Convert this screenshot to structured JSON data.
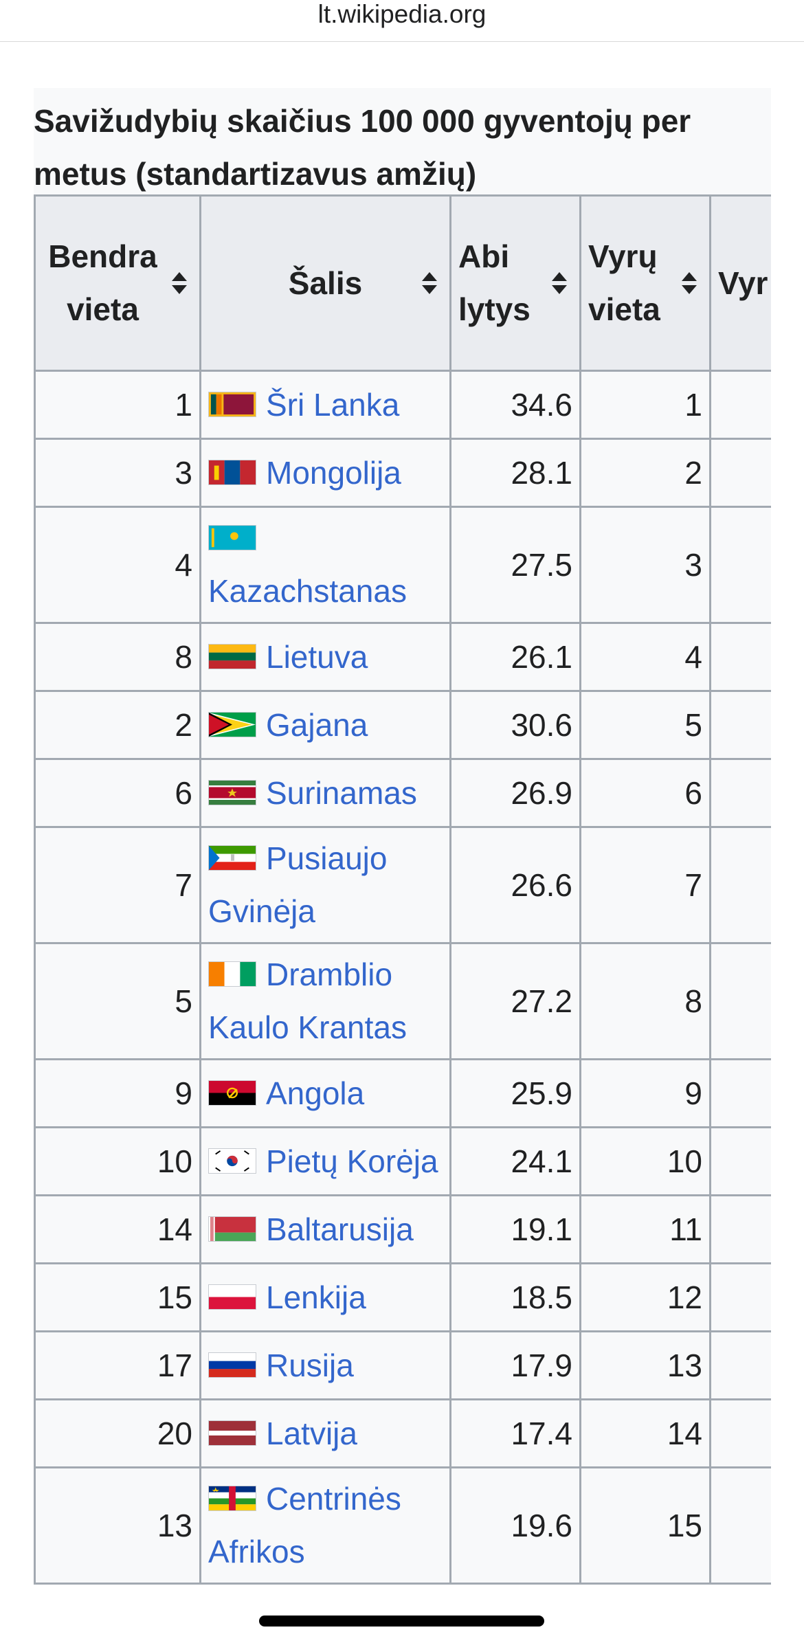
{
  "browser": {
    "url": "lt.wikipedia.org"
  },
  "caption": "Savižudybių skaičius 100 000 gyventojų per metus (standartizavus amžių)",
  "columns": [
    "Bendra vieta",
    "Šalis",
    "Abi lytys",
    "Vyrų vieta",
    "Vyr"
  ],
  "rows": [
    {
      "rank": "1",
      "country": "Šri Lanka",
      "both": "34.6",
      "male_rank": "1",
      "flag": "sri-lanka",
      "flag_colors": [
        "#f7b718",
        "#8d153a"
      ]
    },
    {
      "rank": "3",
      "country": "Mongolija",
      "both": "28.1",
      "male_rank": "2",
      "flag": "mongolia",
      "flag_colors": [
        "#c4272f",
        "#015197"
      ]
    },
    {
      "rank": "4",
      "country": "Kazachstanas",
      "both": "27.5",
      "male_rank": "3",
      "flag": "kazakhstan",
      "flag_colors": [
        "#00afca",
        "#fec50c"
      ]
    },
    {
      "rank": "8",
      "country": "Lietuva",
      "both": "26.1",
      "male_rank": "4",
      "flag": "lithuania",
      "flag_colors": [
        "#fdb913",
        "#006a44",
        "#c1272d"
      ]
    },
    {
      "rank": "2",
      "country": "Gajana",
      "both": "30.6",
      "male_rank": "5",
      "flag": "guyana",
      "flag_colors": [
        "#009e49",
        "#fcd116",
        "#ce1126"
      ]
    },
    {
      "rank": "6",
      "country": "Surinamas",
      "both": "26.9",
      "male_rank": "6",
      "flag": "suriname",
      "flag_colors": [
        "#377e3f",
        "#ffffff",
        "#b40a2d"
      ]
    },
    {
      "rank": "7",
      "country": "Pusiaujo Gvinėja",
      "both": "26.6",
      "male_rank": "7",
      "flag": "equatorial-guinea",
      "flag_colors": [
        "#3e9a00",
        "#ffffff",
        "#e32118",
        "#0073ce"
      ]
    },
    {
      "rank": "5",
      "country": "Dramblio Kaulo Krantas",
      "both": "27.2",
      "male_rank": "8",
      "flag": "ivory-coast",
      "flag_colors": [
        "#f77f00",
        "#ffffff",
        "#009e60"
      ]
    },
    {
      "rank": "9",
      "country": "Angola",
      "both": "25.9",
      "male_rank": "9",
      "flag": "angola",
      "flag_colors": [
        "#cc092f",
        "#000000"
      ]
    },
    {
      "rank": "10",
      "country": "Pietų Korėja",
      "both": "24.1",
      "male_rank": "10",
      "flag": "south-korea",
      "flag_colors": [
        "#ffffff",
        "#cd2e3a",
        "#0047a0"
      ]
    },
    {
      "rank": "14",
      "country": "Baltarusija",
      "both": "19.1",
      "male_rank": "11",
      "flag": "belarus",
      "flag_colors": [
        "#c8313e",
        "#4aa657"
      ]
    },
    {
      "rank": "15",
      "country": "Lenkija",
      "both": "18.5",
      "male_rank": "12",
      "flag": "poland",
      "flag_colors": [
        "#ffffff",
        "#dc143c"
      ]
    },
    {
      "rank": "17",
      "country": "Rusija",
      "both": "17.9",
      "male_rank": "13",
      "flag": "russia",
      "flag_colors": [
        "#ffffff",
        "#0039a6",
        "#d52b1e"
      ]
    },
    {
      "rank": "20",
      "country": "Latvija",
      "both": "17.4",
      "male_rank": "14",
      "flag": "latvia",
      "flag_colors": [
        "#9e3039",
        "#ffffff"
      ]
    },
    {
      "rank": "13",
      "country": "Centrinės Afrikos",
      "both": "19.6",
      "male_rank": "15",
      "flag": "central-african-republic",
      "flag_colors": [
        "#003082",
        "#ffffff",
        "#289728",
        "#ffce00",
        "#d21034"
      ]
    }
  ]
}
